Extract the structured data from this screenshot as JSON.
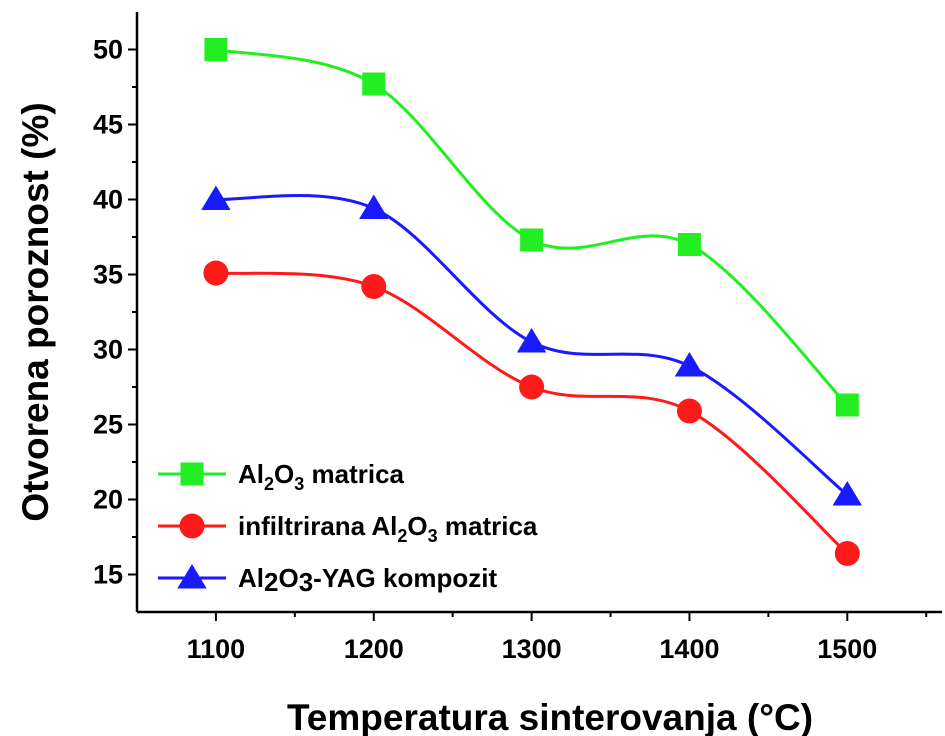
{
  "chart_data": {
    "type": "line",
    "xlabel": "Temperatura sinterovanja (°C)",
    "ylabel": "Otvorena poroznost (%)",
    "xlim": [
      1050,
      1560
    ],
    "ylim": [
      12.5,
      52.5
    ],
    "xticks": [
      1100,
      1200,
      1300,
      1400,
      1500
    ],
    "yticks": [
      15,
      20,
      25,
      30,
      35,
      40,
      45,
      50
    ],
    "x": [
      1100,
      1200,
      1300,
      1400,
      1500
    ],
    "legend_position": "lower-left",
    "series": [
      {
        "name": "Al2O3 matrica",
        "legend": {
          "pre": "Al",
          "sub1": "2",
          "mid": "O",
          "sub2": "3",
          "post": " matrica"
        },
        "values": [
          50.0,
          47.7,
          37.3,
          37.0,
          26.3
        ],
        "color": "#22ee22",
        "marker": "square"
      },
      {
        "name": "infiltrirana Al2O3 matrica",
        "legend": {
          "pre": "infiltrirana Al",
          "sub1": "2",
          "mid": "O",
          "sub2": "3",
          "post": " matrica"
        },
        "values": [
          35.1,
          34.2,
          27.5,
          25.9,
          16.4
        ],
        "color": "#ff1a1a",
        "marker": "circle"
      },
      {
        "name": "Al2O3-YAG kompozit",
        "legend": {
          "pre": "Al",
          "sub1": "2",
          "mid": "O",
          "sub2": "3",
          "post": "-YAG kompozit"
        },
        "values": [
          40.0,
          39.4,
          30.5,
          28.9,
          20.3
        ],
        "color": "#1a1aff",
        "marker": "triangle"
      }
    ]
  }
}
